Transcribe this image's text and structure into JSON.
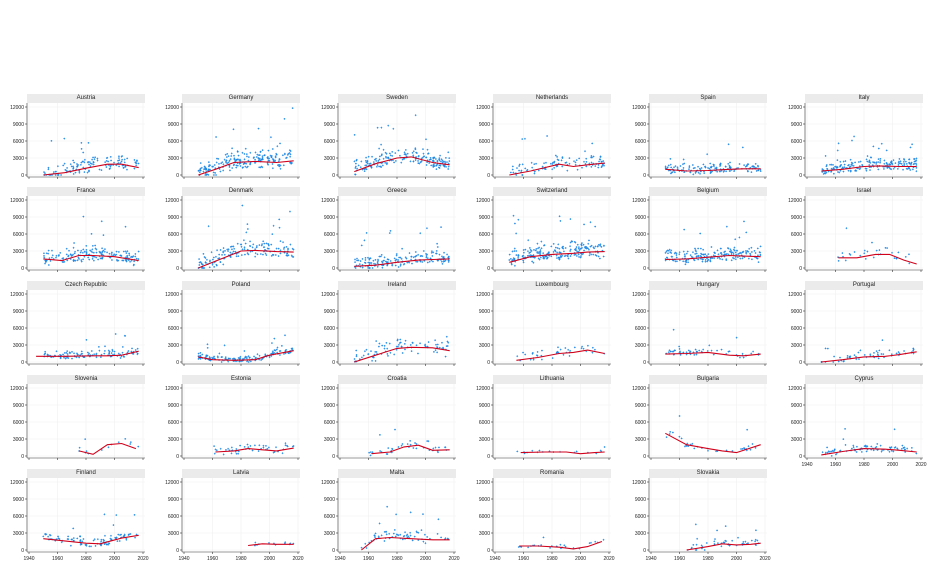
{
  "chart_data": {
    "type": "scatter",
    "layout": "small-multiples",
    "colors": {
      "points": "#1e88e5",
      "trend": "#d0021b",
      "strip": "#ebebeb"
    },
    "ylim": [
      0,
      12000
    ],
    "yticks": [
      0,
      3000,
      6000,
      9000,
      12000
    ],
    "xlim": [
      1940,
      2020
    ],
    "xticks": [
      1940,
      1960,
      1980,
      2000,
      2020
    ],
    "panels": [
      {
        "country": "Austria",
        "range": [
          1950,
          2017
        ],
        "density": 140,
        "spread": 2200,
        "trend": [
          [
            1950,
            0
          ],
          [
            1965,
            400
          ],
          [
            1980,
            1200
          ],
          [
            1995,
            1900
          ],
          [
            2005,
            1900
          ],
          [
            2017,
            1300
          ]
        ]
      },
      {
        "country": "Germany",
        "range": [
          1950,
          2017
        ],
        "density": 220,
        "spread": 2600,
        "trend": [
          [
            1950,
            0
          ],
          [
            1962,
            1000
          ],
          [
            1975,
            2200
          ],
          [
            1990,
            2400
          ],
          [
            2005,
            2200
          ],
          [
            2017,
            2500
          ]
        ]
      },
      {
        "country": "Sweden",
        "range": [
          1950,
          2017
        ],
        "density": 200,
        "spread": 2400,
        "trend": [
          [
            1950,
            600
          ],
          [
            1965,
            2000
          ],
          [
            1980,
            3000
          ],
          [
            1990,
            3200
          ],
          [
            2005,
            2200
          ],
          [
            2017,
            1800
          ]
        ]
      },
      {
        "country": "Netherlands",
        "range": [
          1950,
          2017
        ],
        "density": 110,
        "spread": 1900,
        "trend": [
          [
            1950,
            0
          ],
          [
            1965,
            700
          ],
          [
            1985,
            1900
          ],
          [
            1995,
            1500
          ],
          [
            2005,
            1800
          ],
          [
            2017,
            2100
          ]
        ]
      },
      {
        "country": "Spain",
        "range": [
          1950,
          2017
        ],
        "density": 150,
        "spread": 1500,
        "trend": [
          [
            1950,
            1000
          ],
          [
            1965,
            700
          ],
          [
            1980,
            800
          ],
          [
            1995,
            1000
          ],
          [
            2005,
            1100
          ],
          [
            2017,
            1100
          ]
        ]
      },
      {
        "country": "Italy",
        "range": [
          1950,
          2017
        ],
        "density": 210,
        "spread": 1900,
        "trend": [
          [
            1950,
            700
          ],
          [
            1965,
            1000
          ],
          [
            1980,
            1500
          ],
          [
            1990,
            1600
          ],
          [
            2005,
            1500
          ],
          [
            2017,
            1500
          ]
        ]
      },
      {
        "country": "France",
        "range": [
          1950,
          2017
        ],
        "density": 180,
        "spread": 2100,
        "trend": [
          [
            1950,
            1600
          ],
          [
            1963,
            1300
          ],
          [
            1975,
            2200
          ],
          [
            1985,
            2200
          ],
          [
            2000,
            2000
          ],
          [
            2017,
            1300
          ]
        ]
      },
      {
        "country": "Denmark",
        "range": [
          1950,
          2017
        ],
        "density": 170,
        "spread": 2400,
        "trend": [
          [
            1950,
            0
          ],
          [
            1965,
            1500
          ],
          [
            1980,
            3000
          ],
          [
            1990,
            3100
          ],
          [
            2005,
            2900
          ],
          [
            2017,
            2800
          ]
        ]
      },
      {
        "country": "Greece",
        "range": [
          1950,
          2017
        ],
        "density": 180,
        "spread": 1800,
        "trend": [
          [
            1950,
            300
          ],
          [
            1965,
            500
          ],
          [
            1980,
            1000
          ],
          [
            1995,
            1400
          ],
          [
            2005,
            1500
          ],
          [
            2017,
            1600
          ]
        ]
      },
      {
        "country": "Switzerland",
        "range": [
          1950,
          2017
        ],
        "density": 230,
        "spread": 2600,
        "trend": [
          [
            1950,
            1000
          ],
          [
            1965,
            2000
          ],
          [
            1980,
            2400
          ],
          [
            1995,
            2600
          ],
          [
            2005,
            2800
          ],
          [
            2017,
            2900
          ]
        ]
      },
      {
        "country": "Belgium",
        "range": [
          1950,
          2017
        ],
        "density": 200,
        "spread": 2000,
        "trend": [
          [
            1950,
            1500
          ],
          [
            1965,
            1600
          ],
          [
            1980,
            1900
          ],
          [
            1995,
            2200
          ],
          [
            2005,
            2100
          ],
          [
            2017,
            2000
          ]
        ]
      },
      {
        "country": "Israel",
        "range": [
          1960,
          2017
        ],
        "density": 30,
        "spread": 1800,
        "trend": [
          [
            1962,
            1800
          ],
          [
            1975,
            1800
          ],
          [
            1988,
            2400
          ],
          [
            1998,
            2400
          ],
          [
            2008,
            1400
          ],
          [
            2017,
            700
          ]
        ]
      },
      {
        "country": "Czech Republic",
        "range": [
          1950,
          2017
        ],
        "density": 120,
        "spread": 1100,
        "trend": [
          [
            1945,
            1000
          ],
          [
            1965,
            1000
          ],
          [
            1985,
            1100
          ],
          [
            1995,
            1100
          ],
          [
            2005,
            1200
          ],
          [
            2017,
            1900
          ]
        ]
      },
      {
        "country": "Poland",
        "range": [
          1950,
          2017
        ],
        "density": 160,
        "spread": 900,
        "trend": [
          [
            1950,
            900
          ],
          [
            1960,
            400
          ],
          [
            1975,
            300
          ],
          [
            1990,
            400
          ],
          [
            2000,
            1200
          ],
          [
            2017,
            2000
          ]
        ]
      },
      {
        "country": "Ireland",
        "range": [
          1950,
          2017
        ],
        "density": 90,
        "spread": 2300,
        "trend": [
          [
            1950,
            0
          ],
          [
            1965,
            1200
          ],
          [
            1980,
            2400
          ],
          [
            1990,
            2600
          ],
          [
            2005,
            2500
          ],
          [
            2017,
            2000
          ]
        ]
      },
      {
        "country": "Luxembourg",
        "range": [
          1955,
          2017
        ],
        "density": 40,
        "spread": 1700,
        "trend": [
          [
            1955,
            300
          ],
          [
            1970,
            800
          ],
          [
            1985,
            1500
          ],
          [
            1995,
            1700
          ],
          [
            2005,
            2100
          ],
          [
            2017,
            1500
          ]
        ]
      },
      {
        "country": "Hungary",
        "range": [
          1950,
          2017
        ],
        "density": 60,
        "spread": 1500,
        "trend": [
          [
            1950,
            1400
          ],
          [
            1965,
            1500
          ],
          [
            1980,
            1700
          ],
          [
            1995,
            1200
          ],
          [
            2005,
            1100
          ],
          [
            2017,
            1400
          ]
        ]
      },
      {
        "country": "Portugal",
        "range": [
          1950,
          2017
        ],
        "density": 60,
        "spread": 1500,
        "trend": [
          [
            1950,
            0
          ],
          [
            1965,
            400
          ],
          [
            1980,
            900
          ],
          [
            1995,
            1000
          ],
          [
            2005,
            1300
          ],
          [
            2017,
            1800
          ]
        ]
      },
      {
        "country": "Slovenia",
        "range": [
          1975,
          2017
        ],
        "density": 14,
        "spread": 1300,
        "trend": [
          [
            1975,
            900
          ],
          [
            1985,
            300
          ],
          [
            1995,
            2000
          ],
          [
            2005,
            2200
          ],
          [
            2015,
            1300
          ]
        ]
      },
      {
        "country": "Estonia",
        "range": [
          1960,
          2017
        ],
        "density": 50,
        "spread": 1400,
        "trend": [
          [
            1962,
            700
          ],
          [
            1975,
            900
          ],
          [
            1985,
            1300
          ],
          [
            1995,
            1100
          ],
          [
            2005,
            900
          ],
          [
            2017,
            1400
          ]
        ]
      },
      {
        "country": "Croatia",
        "range": [
          1960,
          2017
        ],
        "density": 40,
        "spread": 1500,
        "trend": [
          [
            1962,
            400
          ],
          [
            1975,
            700
          ],
          [
            1985,
            1600
          ],
          [
            1995,
            1900
          ],
          [
            2005,
            1000
          ],
          [
            2017,
            1100
          ]
        ]
      },
      {
        "country": "Lithuania",
        "range": [
          1955,
          2017
        ],
        "density": 18,
        "spread": 500,
        "trend": [
          [
            1958,
            600
          ],
          [
            1975,
            700
          ],
          [
            1990,
            700
          ],
          [
            2000,
            400
          ],
          [
            2010,
            600
          ],
          [
            2017,
            700
          ]
        ]
      },
      {
        "country": "Bulgaria",
        "range": [
          1950,
          2017
        ],
        "density": 35,
        "spread": 1500,
        "trend": [
          [
            1950,
            4000
          ],
          [
            1965,
            2000
          ],
          [
            1980,
            1300
          ],
          [
            1990,
            900
          ],
          [
            2000,
            600
          ],
          [
            2017,
            2000
          ]
        ]
      },
      {
        "country": "Cyprus",
        "range": [
          1950,
          2017
        ],
        "density": 80,
        "spread": 1300,
        "trend": [
          [
            1950,
            200
          ],
          [
            1965,
            800
          ],
          [
            1980,
            1300
          ],
          [
            1995,
            1200
          ],
          [
            2005,
            1000
          ],
          [
            2017,
            700
          ]
        ],
        "show_x_ticks": true
      },
      {
        "country": "Finland",
        "range": [
          1950,
          2017
        ],
        "density": 100,
        "spread": 1500,
        "trend": [
          [
            1950,
            2000
          ],
          [
            1965,
            1600
          ],
          [
            1980,
            1200
          ],
          [
            1990,
            1100
          ],
          [
            2005,
            2100
          ],
          [
            2017,
            2600
          ]
        ],
        "show_x_ticks": true
      },
      {
        "country": "Latvia",
        "range": [
          1985,
          2017
        ],
        "density": 12,
        "spread": 800,
        "trend": [
          [
            1985,
            800
          ],
          [
            1995,
            1100
          ],
          [
            2005,
            1000
          ],
          [
            2017,
            1000
          ]
        ],
        "show_x_ticks": true
      },
      {
        "country": "Malta",
        "range": [
          1955,
          2017
        ],
        "density": 70,
        "spread": 1800,
        "trend": [
          [
            1955,
            0
          ],
          [
            1965,
            2000
          ],
          [
            1975,
            2200
          ],
          [
            1990,
            2000
          ],
          [
            2005,
            1800
          ],
          [
            2017,
            1800
          ]
        ],
        "show_x_ticks": true
      },
      {
        "country": "Romania",
        "range": [
          1955,
          2017
        ],
        "density": 25,
        "spread": 600,
        "trend": [
          [
            1957,
            700
          ],
          [
            1970,
            700
          ],
          [
            1985,
            500
          ],
          [
            1995,
            200
          ],
          [
            2005,
            600
          ],
          [
            2015,
            1500
          ]
        ],
        "show_x_ticks": true
      },
      {
        "country": "Slovakia",
        "range": [
          1965,
          2017
        ],
        "density": 50,
        "spread": 1200,
        "trend": [
          [
            1965,
            0
          ],
          [
            1980,
            600
          ],
          [
            1990,
            1100
          ],
          [
            2000,
            900
          ],
          [
            2010,
            1000
          ],
          [
            2017,
            1200
          ]
        ],
        "show_x_ticks": true
      }
    ]
  }
}
